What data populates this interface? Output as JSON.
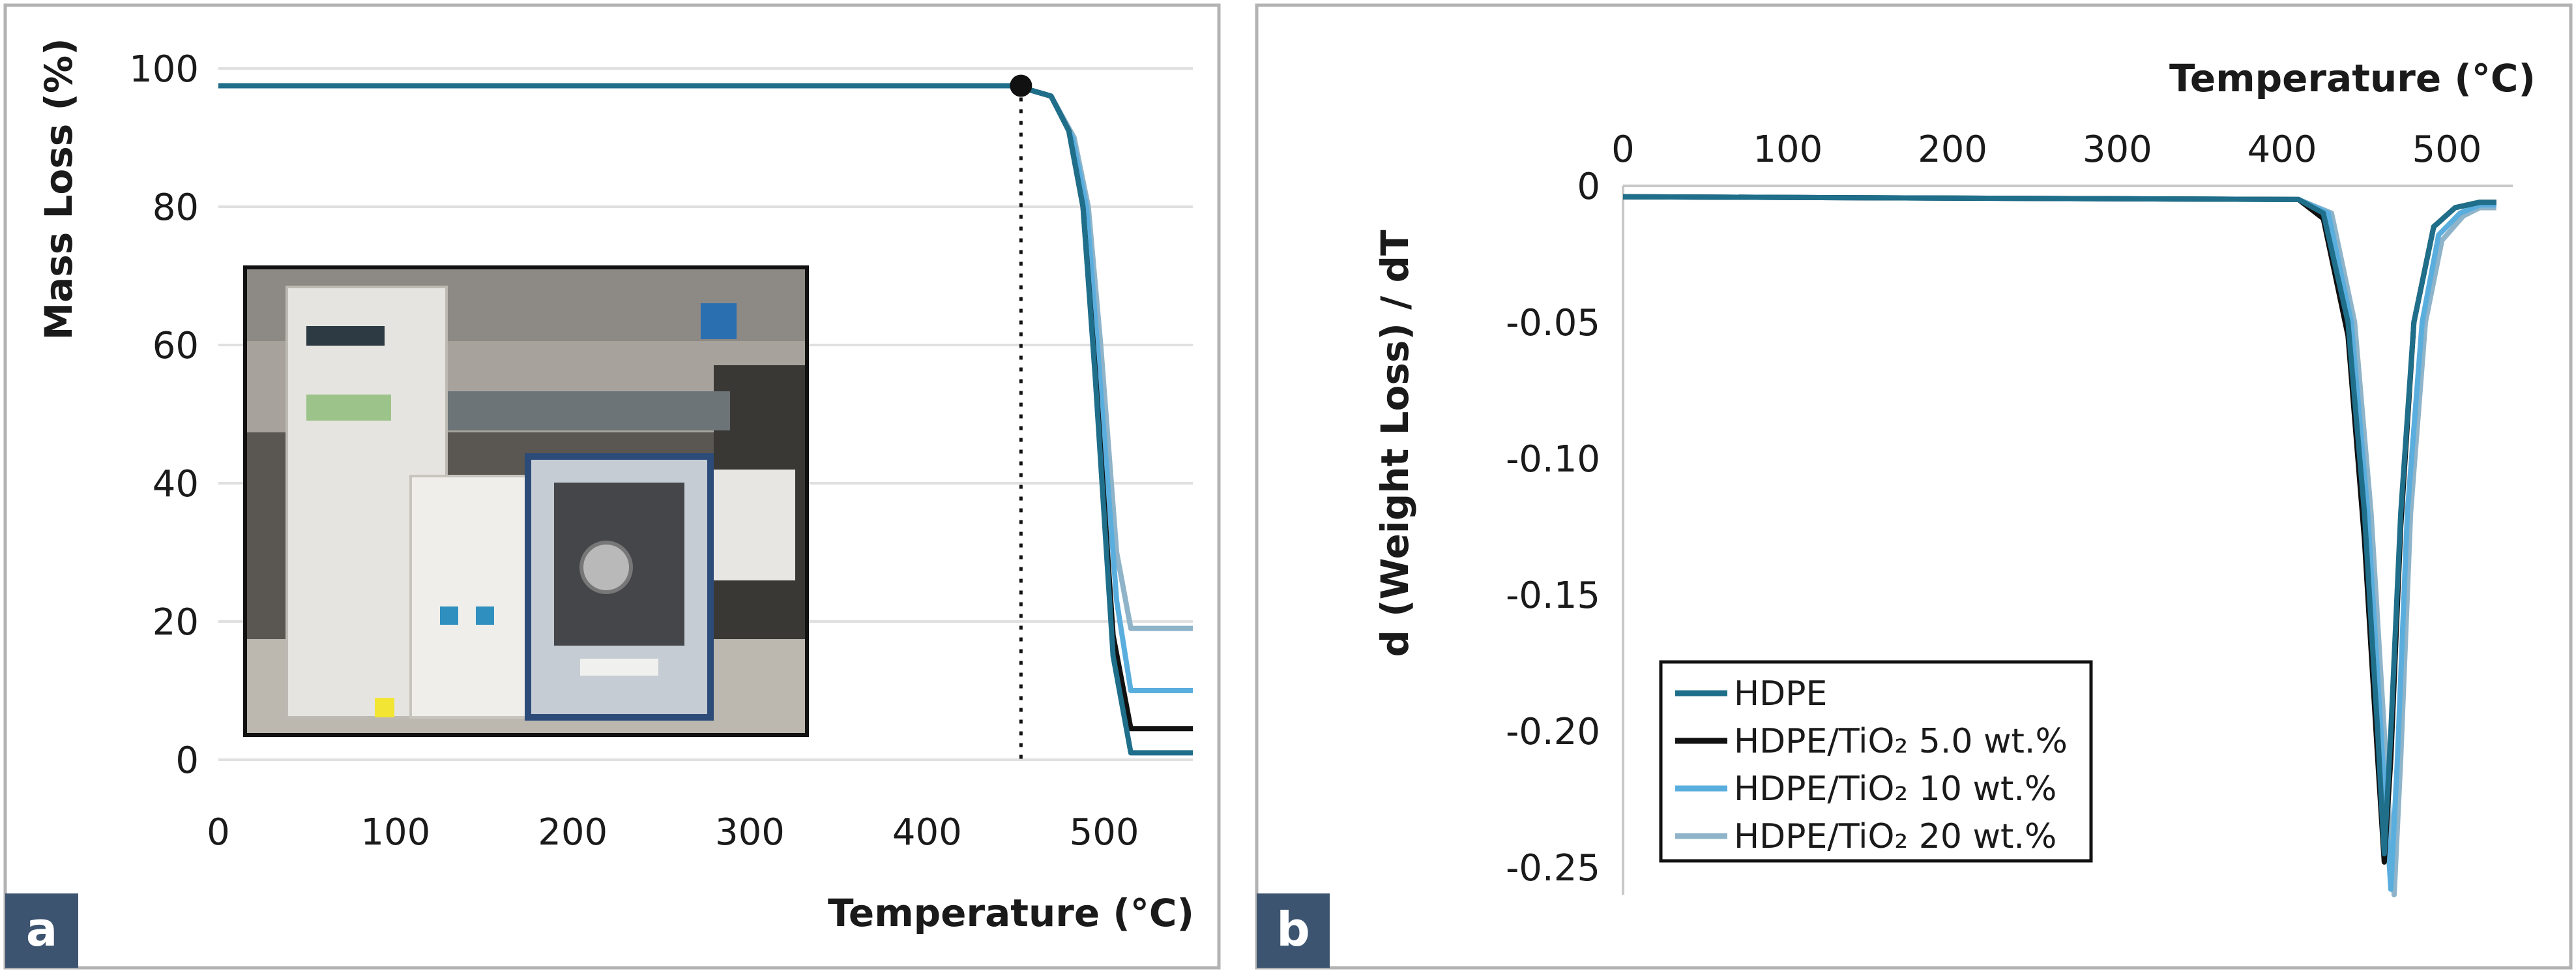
{
  "chart_data": [
    {
      "panel": "a",
      "type": "line",
      "xlabel": "Temperature (°C)",
      "ylabel": "Mass Loss (%)",
      "xlim": [
        0,
        550
      ],
      "ylim": [
        0,
        100
      ],
      "xticks": [
        "0",
        "100",
        "200",
        "300",
        "400",
        "500"
      ],
      "yticks": [
        "0",
        "20",
        "40",
        "60",
        "80",
        "100"
      ],
      "grid": "horizontal",
      "marker": {
        "x": 453,
        "y": 97.5
      },
      "inset": "photo of thermogravimetric analyzer",
      "series": [
        {
          "name": "HDPE",
          "color": "#1f6f8b",
          "x": [
            0,
            450,
            470,
            480,
            488,
            495,
            505,
            515,
            550
          ],
          "y": [
            97.5,
            97.5,
            96,
            91,
            80,
            55,
            15,
            1,
            1
          ]
        },
        {
          "name": "HDPE/TiO₂ 5.0 wt.%",
          "color": "#111111",
          "x": [
            0,
            450,
            470,
            480,
            488,
            495,
            505,
            515,
            550
          ],
          "y": [
            97.5,
            97.5,
            96,
            91,
            80,
            56,
            18,
            4.5,
            4.5
          ]
        },
        {
          "name": "HDPE/TiO₂ 10 wt.%",
          "color": "#5aaede",
          "x": [
            0,
            450,
            470,
            482,
            490,
            497,
            507,
            515,
            550
          ],
          "y": [
            97.5,
            97.5,
            96,
            90,
            80,
            57,
            23,
            10,
            10
          ]
        },
        {
          "name": "HDPE/TiO₂ 20 wt.%",
          "color": "#8fb4c9",
          "x": [
            0,
            450,
            470,
            483,
            491,
            498,
            507,
            515,
            550
          ],
          "y": [
            97.5,
            97.5,
            96,
            90,
            80,
            60,
            30,
            19,
            19
          ]
        }
      ]
    },
    {
      "panel": "b",
      "type": "line",
      "xlabel": "Temperature (°C)",
      "ylabel": "d (Weight Loss) / dT",
      "xlim": [
        0,
        540
      ],
      "ylim": [
        -0.26,
        0
      ],
      "xticks": [
        "0",
        "100",
        "200",
        "300",
        "400",
        "500"
      ],
      "yticks": [
        "0",
        "-0.05",
        "-0.10",
        "-0.15",
        "-0.20",
        "-0.25"
      ],
      "legend_position": "bottom-left",
      "series": [
        {
          "name": "HDPE",
          "color": "#1f6f8b",
          "x": [
            0,
            410,
            425,
            440,
            450,
            458,
            462,
            466,
            472,
            480,
            492,
            505,
            520,
            530
          ],
          "y": [
            -0.004,
            -0.005,
            -0.01,
            -0.05,
            -0.12,
            -0.2,
            -0.245,
            -0.2,
            -0.12,
            -0.05,
            -0.015,
            -0.008,
            -0.006,
            -0.006
          ]
        },
        {
          "name": "HDPE/TiO₂ 5.0 wt.%",
          "color": "#111111",
          "x": [
            0,
            410,
            425,
            440,
            450,
            458,
            462,
            466,
            472,
            480,
            492,
            505,
            520,
            530
          ],
          "y": [
            -0.004,
            -0.005,
            -0.012,
            -0.055,
            -0.13,
            -0.21,
            -0.248,
            -0.21,
            -0.125,
            -0.05,
            -0.015,
            -0.008,
            -0.006,
            -0.006
          ]
        },
        {
          "name": "HDPE/TiO₂ 10 wt.%",
          "color": "#5aaede",
          "x": [
            0,
            410,
            428,
            442,
            452,
            461,
            466,
            470,
            476,
            485,
            495,
            508,
            520,
            530
          ],
          "y": [
            -0.004,
            -0.005,
            -0.01,
            -0.05,
            -0.12,
            -0.21,
            -0.258,
            -0.21,
            -0.12,
            -0.05,
            -0.018,
            -0.01,
            -0.007,
            -0.007
          ]
        },
        {
          "name": "HDPE/TiO₂ 20 wt.%",
          "color": "#8fb4c9",
          "x": [
            0,
            410,
            430,
            444,
            454,
            463,
            468,
            472,
            478,
            487,
            497,
            510,
            520,
            530
          ],
          "y": [
            -0.004,
            -0.005,
            -0.01,
            -0.05,
            -0.12,
            -0.21,
            -0.26,
            -0.21,
            -0.12,
            -0.05,
            -0.02,
            -0.011,
            -0.008,
            -0.008
          ]
        }
      ]
    }
  ]
}
